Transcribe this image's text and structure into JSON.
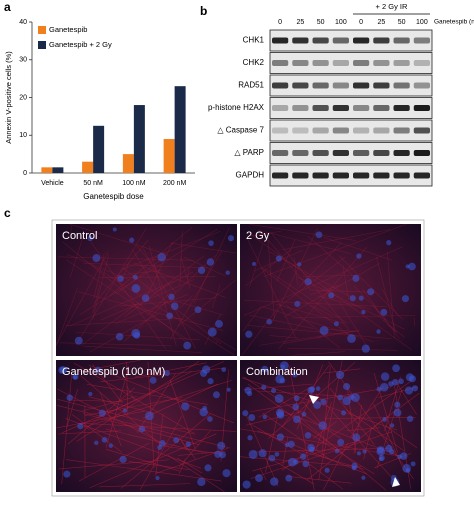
{
  "chart_data": {
    "type": "bar",
    "panel_label": "a",
    "y_label": "Annexin V-positive cells (%)",
    "x_label": "Ganetespib dose",
    "categories": [
      "Vehicle",
      "50 nM",
      "100 nM",
      "200 nM"
    ],
    "series": [
      {
        "name": "Ganetespib",
        "color": "#f07f1e",
        "values": [
          1.5,
          3,
          5,
          9
        ]
      },
      {
        "name": "Ganetespib + 2 Gy",
        "color": "#1c2a4a",
        "values": [
          1.5,
          12.5,
          18,
          23
        ]
      }
    ],
    "ylim": [
      0,
      40
    ],
    "yticks": [
      0,
      10,
      20,
      30,
      40
    ],
    "grid": false,
    "legend": "top-left"
  },
  "blot": {
    "panel_label": "b",
    "treatment": "+ 2 Gy IR",
    "dose_label": "Ganetespib (nM)",
    "lanes": [
      "0",
      "25",
      "50",
      "100",
      "0",
      "25",
      "50",
      "100"
    ],
    "rows": [
      "CHK1",
      "CHK2",
      "RAD51",
      "p-histone H2AX",
      "△ Caspase 7",
      "△ PARP",
      "GAPDH"
    ]
  },
  "images": {
    "panel_label": "c",
    "labels": [
      "Control",
      "2 Gy",
      "Ganetespib (100 nM)",
      "Combination"
    ]
  }
}
